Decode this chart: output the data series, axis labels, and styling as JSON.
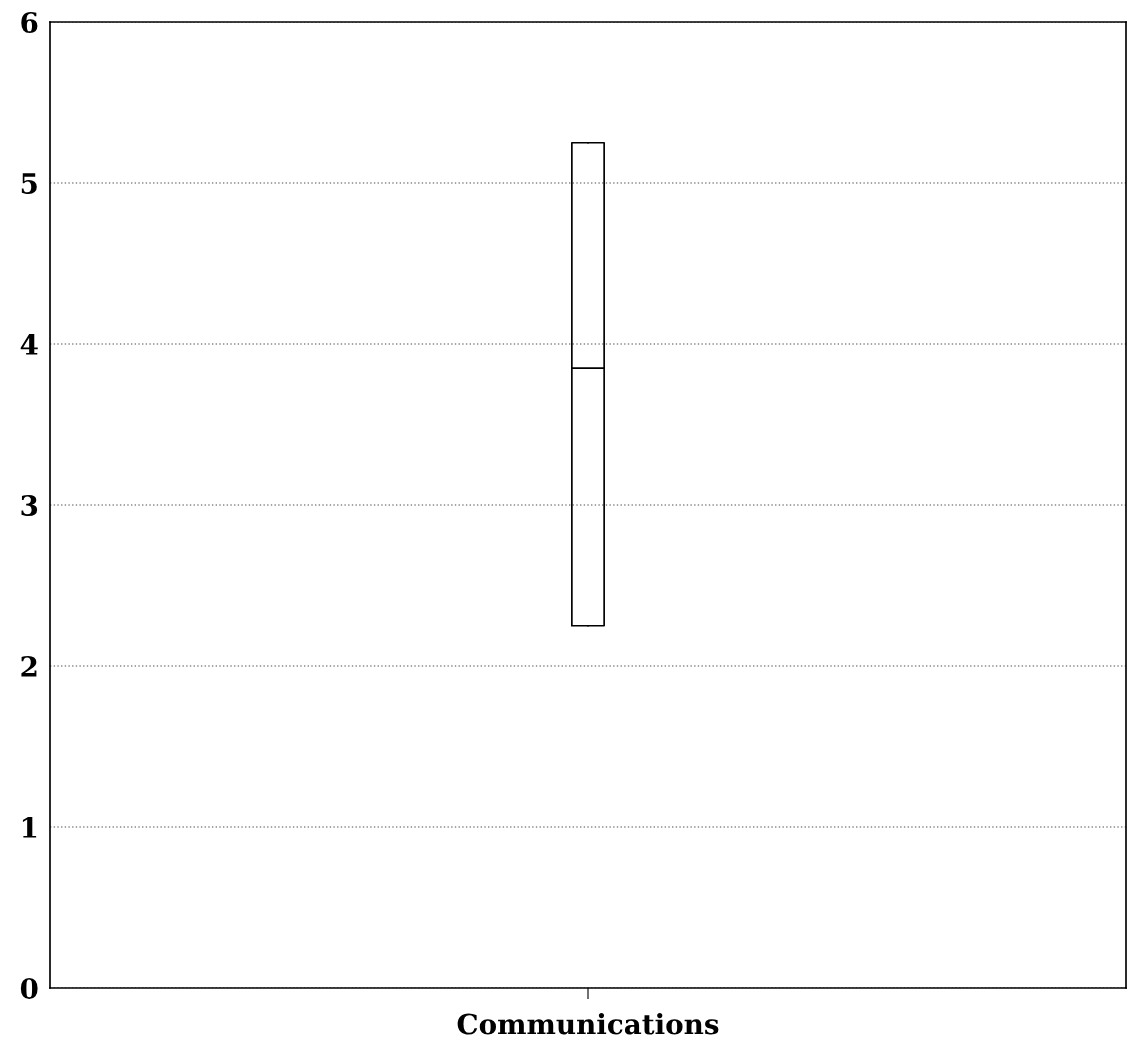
{
  "chart_data": {
    "type": "box",
    "categories": [
      "Communications"
    ],
    "boxes": [
      {
        "low": 2.25,
        "q1": 2.25,
        "median": 3.85,
        "q3": 5.25,
        "high": 5.25
      }
    ],
    "ylim": [
      0,
      6
    ],
    "yticks": [
      0,
      1,
      2,
      3,
      4,
      5,
      6
    ],
    "grid": "y",
    "color": "#000000"
  }
}
